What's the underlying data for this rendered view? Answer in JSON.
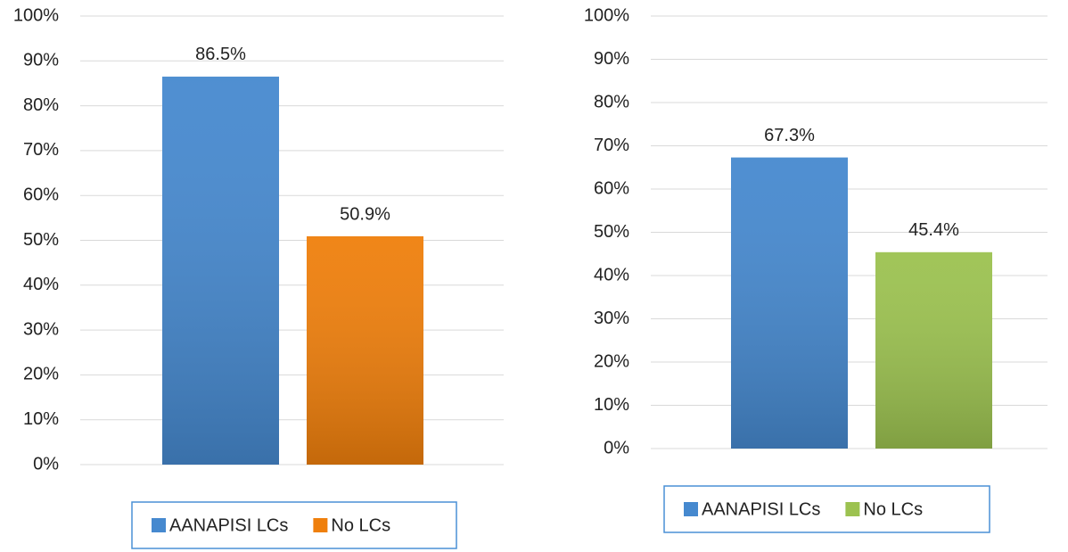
{
  "chart_data": [
    {
      "type": "bar",
      "series": [
        {
          "name": "AANAPISI LCs",
          "color": "#4689cf",
          "values": [
            86.5
          ],
          "value_labels": [
            "86.5%"
          ]
        },
        {
          "name": "No LCs",
          "color": "#ef7f0c",
          "values": [
            50.9
          ],
          "value_labels": [
            "50.9%"
          ]
        }
      ],
      "ylim": [
        0,
        100
      ],
      "yticks": [
        {
          "value": 0,
          "label": "0%"
        },
        {
          "value": 10,
          "label": "10%"
        },
        {
          "value": 20,
          "label": "20%"
        },
        {
          "value": 30,
          "label": "30%"
        },
        {
          "value": 40,
          "label": "40%"
        },
        {
          "value": 50,
          "label": "50%"
        },
        {
          "value": 60,
          "label": "60%"
        },
        {
          "value": 70,
          "label": "70%"
        },
        {
          "value": 80,
          "label": "80%"
        },
        {
          "value": 90,
          "label": "90%"
        },
        {
          "value": 100,
          "label": "100%"
        }
      ],
      "grid": true,
      "legend": "bottom"
    },
    {
      "type": "bar",
      "series": [
        {
          "name": "AANAPISI LCs",
          "color": "#4689cf",
          "values": [
            67.3
          ],
          "value_labels": [
            "67.3%"
          ]
        },
        {
          "name": "No LCs",
          "color": "#9cc250",
          "values": [
            45.4
          ],
          "value_labels": [
            "45.4%"
          ]
        }
      ],
      "ylim": [
        0,
        100
      ],
      "yticks": [
        {
          "value": 0,
          "label": "0%"
        },
        {
          "value": 10,
          "label": "10%"
        },
        {
          "value": 20,
          "label": "20%"
        },
        {
          "value": 30,
          "label": "30%"
        },
        {
          "value": 40,
          "label": "40%"
        },
        {
          "value": 50,
          "label": "50%"
        },
        {
          "value": 60,
          "label": "60%"
        },
        {
          "value": 70,
          "label": "70%"
        },
        {
          "value": 80,
          "label": "80%"
        },
        {
          "value": 90,
          "label": "90%"
        },
        {
          "value": 100,
          "label": "100%"
        }
      ],
      "grid": true,
      "legend": "bottom"
    }
  ]
}
